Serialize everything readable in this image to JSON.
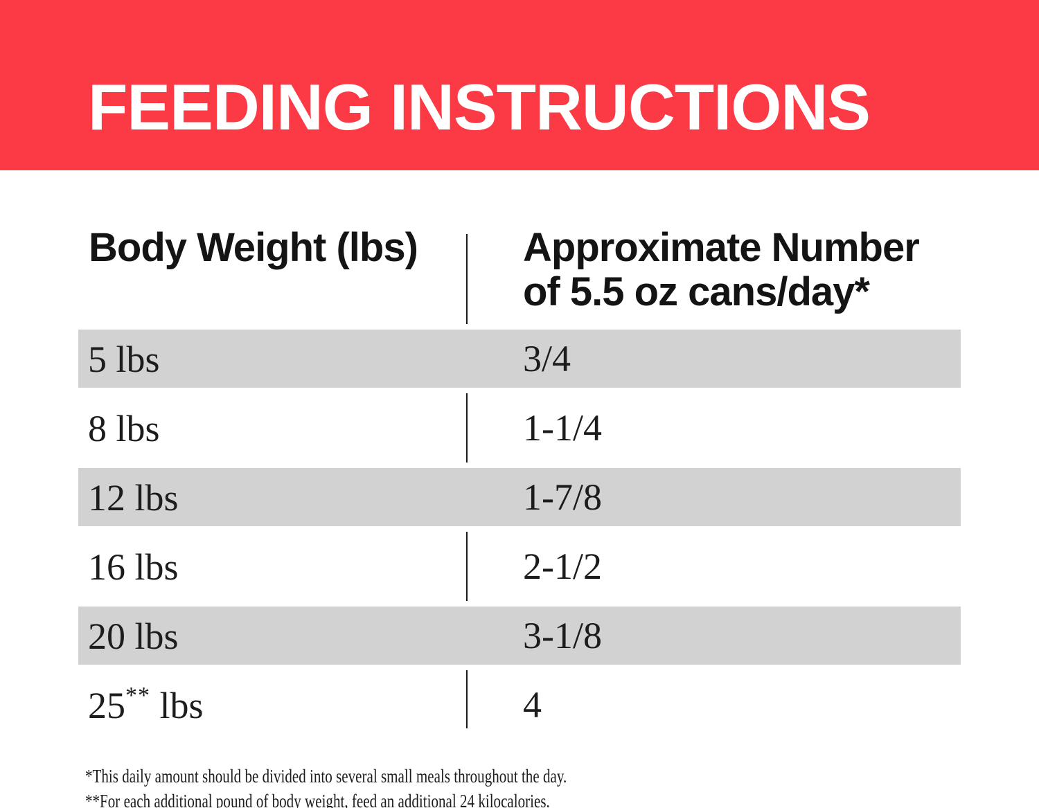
{
  "banner": {
    "title": "FEEDING INSTRUCTIONS"
  },
  "table": {
    "col1_header": "Body Weight (lbs)",
    "col2_header": "Approximate Number\nof 5.5 oz cans/day*",
    "rows": [
      {
        "weight_pre": "5 lbs",
        "weight_sup": "",
        "weight_post": "",
        "cans": "3/4",
        "shaded": true
      },
      {
        "weight_pre": "8 lbs",
        "weight_sup": "",
        "weight_post": "",
        "cans": "1-1/4",
        "shaded": false
      },
      {
        "weight_pre": "12 lbs",
        "weight_sup": "",
        "weight_post": "",
        "cans": "1-7/8",
        "shaded": true
      },
      {
        "weight_pre": "16 lbs",
        "weight_sup": "",
        "weight_post": "",
        "cans": "2-1/2",
        "shaded": false
      },
      {
        "weight_pre": "20 lbs",
        "weight_sup": "",
        "weight_post": "",
        "cans": "3-1/8",
        "shaded": true
      },
      {
        "weight_pre": "25",
        "weight_sup": "**",
        "weight_post": " lbs",
        "cans": "4",
        "shaded": false
      }
    ]
  },
  "footnotes": [
    "*This daily amount should be divided into several small meals throughout the day.",
    "**For each additional pound of body weight, feed an additional 24 kilocalories."
  ],
  "colors": {
    "banner_red": "#fc3a45",
    "row_gray": "#d2d2d2"
  }
}
